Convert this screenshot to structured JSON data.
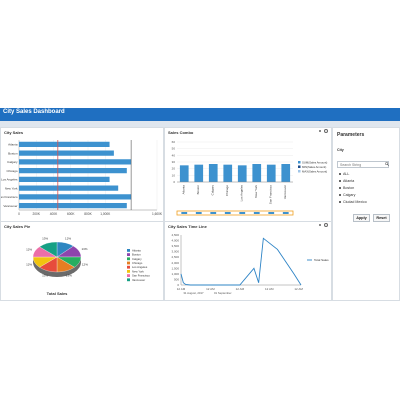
{
  "dashboard": {
    "title": "City Sales Dashboard"
  },
  "colors": {
    "header": "#1f6fc1",
    "bar": "#3d92cf",
    "bar_outline": "#2a7bb5",
    "redline": "#d9534f",
    "line": "#2e84c6",
    "orange": "#f0a020"
  },
  "panels": {
    "city_sales": {
      "title": "City Sales"
    },
    "sales_combo": {
      "title": "Sales Combo"
    },
    "city_sales_pie": {
      "title": "City Sales Pie",
      "caption": "Total Sales"
    },
    "time_line": {
      "title": "City Sales Time Line"
    }
  },
  "parameters": {
    "title": "Parameters",
    "field_label": "City",
    "search_placeholder": "Search String",
    "options": [
      {
        "label": "ALL",
        "checked": false
      },
      {
        "label": "Atlanta",
        "checked": false
      },
      {
        "label": "Boston",
        "checked": false
      },
      {
        "label": "Calgary",
        "checked": true
      },
      {
        "label": "Ciudad Mexico",
        "checked": false
      }
    ],
    "apply_label": "Apply",
    "reset_label": "Reset"
  },
  "chart_data": [
    {
      "type": "bar",
      "orientation": "horizontal",
      "categories": [
        "Atlanta",
        "Boston",
        "Calgary",
        "Chicago",
        "Los Angeles",
        "New York",
        "San Francisco",
        "Vancouver"
      ],
      "values": [
        1050000,
        1100000,
        1300000,
        1250000,
        1050000,
        1150000,
        1300000,
        1250000
      ],
      "xticks": [
        "0",
        "200K",
        "400K",
        "600K",
        "800K",
        "1,000K",
        "1,600K"
      ]
    },
    {
      "type": "bar",
      "categories": [
        "Atlanta",
        "Boston",
        "Calgary",
        "Chicago",
        "Los Angeles",
        "New York",
        "San Francisco",
        "Vancouver"
      ],
      "values": [
        25,
        26,
        27,
        26,
        25,
        27,
        26,
        27
      ],
      "yticks": [
        "0",
        "10",
        "20",
        "30",
        "40",
        "50",
        "60"
      ],
      "legend": [
        "SUM(Sales Amount)",
        "MIN(Sales Amount)",
        "MAX(Sales Amount)"
      ]
    },
    {
      "type": "pie",
      "slices": [
        {
          "label": "Atlanta",
          "value": 12,
          "color": "#2e86c1"
        },
        {
          "label": "Boston",
          "value": 13,
          "color": "#8e44ad"
        },
        {
          "label": "Calgary",
          "value": 12,
          "color": "#27ae60"
        },
        {
          "label": "Chicago",
          "value": 13,
          "color": "#e67e22"
        },
        {
          "label": "Los Angeles",
          "value": 13,
          "color": "#e74c3c"
        },
        {
          "label": "New York",
          "value": 12,
          "color": "#f1c40f"
        },
        {
          "label": "San Francisco",
          "value": 12,
          "color": "#ec6fa8"
        },
        {
          "label": "Vancouver",
          "value": 13,
          "color": "#16a085"
        }
      ],
      "percent_labels": [
        "12%",
        "13%",
        "12%",
        "13%",
        "13%",
        "12%",
        "12%",
        "13%"
      ]
    },
    {
      "type": "line",
      "series_name": "Total Sales",
      "yticks": [
        "0",
        "500",
        "1,000",
        "1,500",
        "2,000",
        "2,500",
        "3,000",
        "3,500",
        "4,000",
        "4,500"
      ],
      "xticks": [
        "12 AM",
        "12 AM",
        "12 AM",
        "12 AM",
        "12 AM"
      ],
      "xsub": [
        "31 August, 2017",
        "01 September"
      ],
      "points": [
        [
          0,
          1000
        ],
        [
          2,
          200
        ],
        [
          4,
          50
        ],
        [
          8,
          0
        ],
        [
          20,
          0
        ],
        [
          32,
          0
        ],
        [
          50,
          0
        ],
        [
          62,
          1500
        ],
        [
          66,
          200
        ],
        [
          70,
          4200
        ],
        [
          82,
          3200
        ],
        [
          96,
          1000
        ],
        [
          102,
          0
        ]
      ]
    }
  ]
}
